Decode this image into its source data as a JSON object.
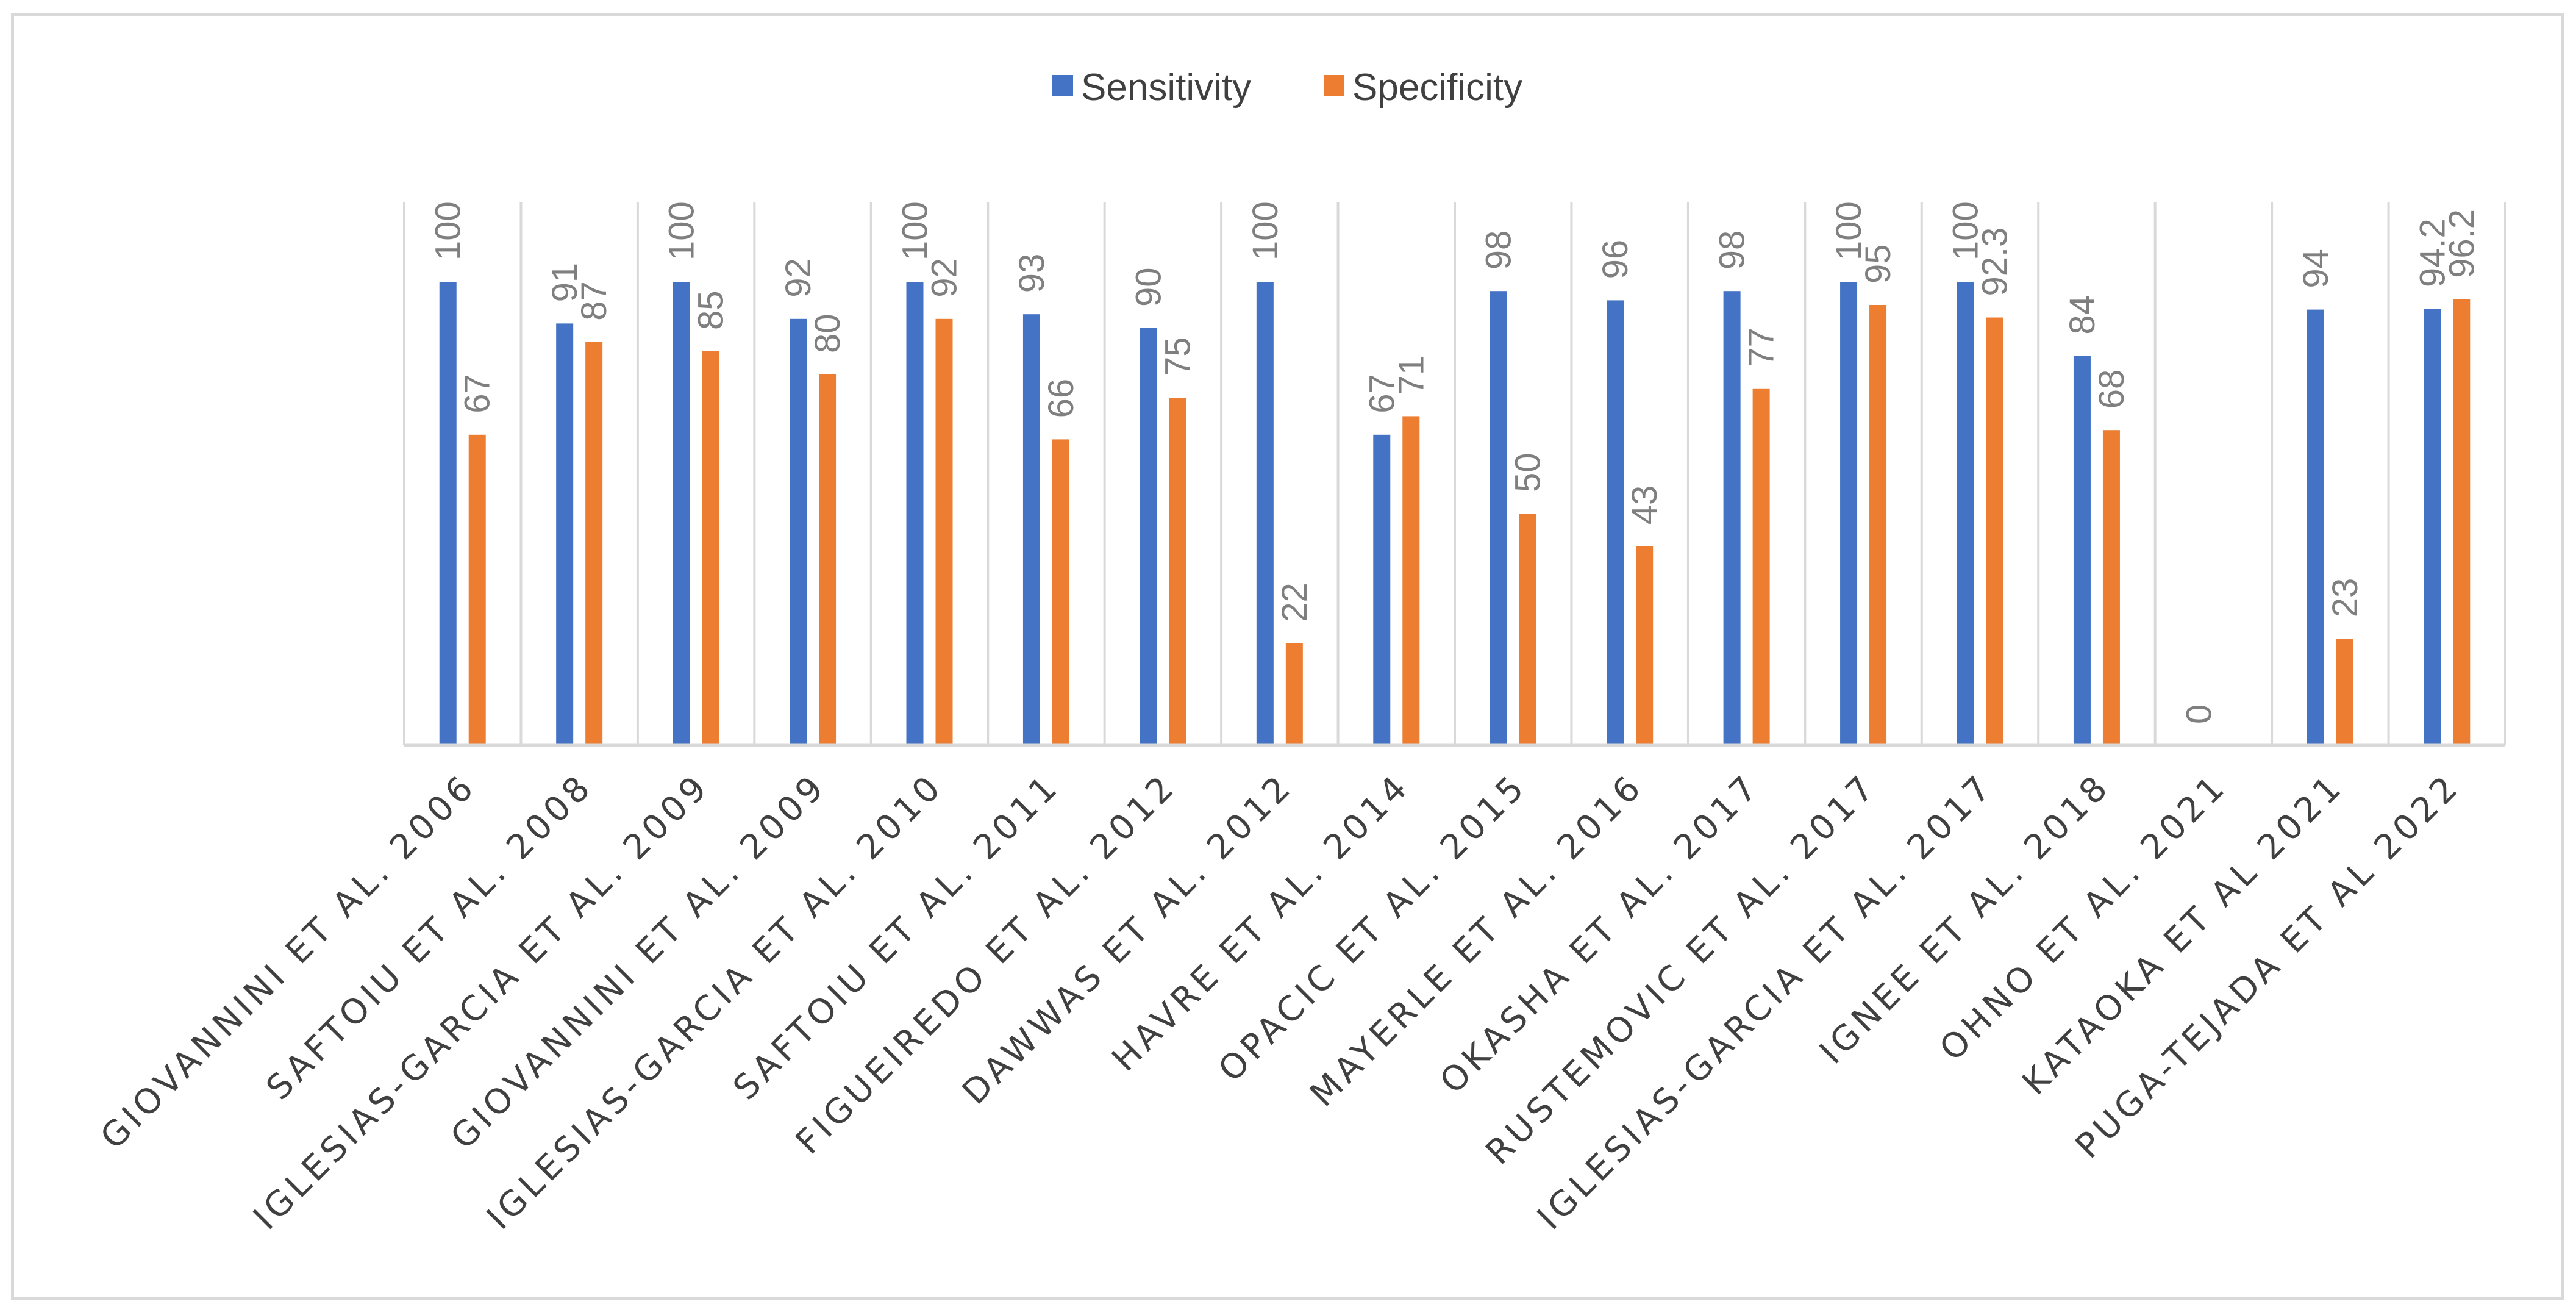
{
  "chart_data": {
    "type": "bar",
    "title": "",
    "xlabel": "",
    "ylabel": "",
    "ylim": [
      0,
      100
    ],
    "grid": "vertical category separators",
    "legend": "top-center",
    "categories": [
      "GIOVANNINI ET AL. 2006",
      "SAFTOIU ET AL. 2008",
      "IGLESIAS-GARCIA ET AL. 2009",
      "GIOVANNINI ET AL. 2009",
      "IGLESIAS-GARCIA ET AL. 2010",
      "SAFTOIU ET AL. 2011",
      "FIGUEIREDO ET AL. 2012",
      "DAWWAS ET AL. 2012",
      "HAVRE ET AL. 2014",
      "OPACIC ET AL. 2015",
      "MAYERLE ET AL. 2016",
      "OKASHA ET AL. 2017",
      "RUSTEMOVIC ET AL. 2017",
      "IGLESIAS-GARCIA ET AL. 2017",
      "IGNEE ET AL. 2018",
      "OHNO ET AL. 2021",
      "KATAOKA ET AL 2021",
      "PUGA-TEJADA ET AL 2022"
    ],
    "series": [
      {
        "name": "Sensitivity",
        "color": "#4472c4",
        "values": [
          100,
          91,
          100,
          92,
          100,
          93,
          90,
          100,
          67,
          98,
          96,
          98,
          100,
          100,
          84,
          0,
          94,
          94.2
        ],
        "labels": [
          "100",
          "91",
          "100",
          "92",
          "100",
          "93",
          "90",
          "100",
          "67",
          "98",
          "96",
          "98",
          "100",
          "100",
          "84",
          "0",
          "94",
          "94.2"
        ]
      },
      {
        "name": "Specificity",
        "color": "#ed7d31",
        "values": [
          67,
          87,
          85,
          80,
          92,
          66,
          75,
          22,
          71,
          50,
          43,
          77,
          95,
          92.3,
          68,
          null,
          23,
          96.2
        ],
        "labels": [
          "67",
          "87",
          "85",
          "80",
          "92",
          "66",
          "75",
          "22",
          "71",
          "50",
          "43",
          "77",
          "95",
          "92.3",
          "68",
          "",
          "23",
          "96.2"
        ]
      }
    ]
  }
}
